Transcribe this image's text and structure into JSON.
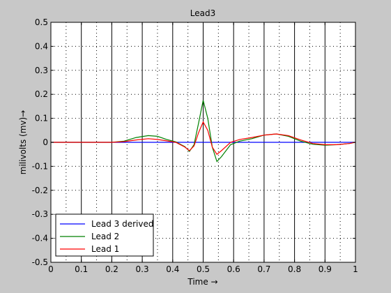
{
  "chart_data": {
    "type": "line",
    "title": "Lead3",
    "xlabel": "Time →",
    "ylabel": "milivolts (mv)→",
    "xlim": [
      0,
      1
    ],
    "ylim": [
      -0.5,
      0.5
    ],
    "x_ticks": [
      0,
      0.1,
      0.2,
      0.3,
      0.4,
      0.5,
      0.6,
      0.7,
      0.8,
      0.9,
      1
    ],
    "x_tick_labels": [
      "0",
      "0.1",
      "0.2",
      "0.3",
      "0.4",
      "0.5",
      "0.6",
      "0.7",
      "0.8",
      "0.9",
      "1"
    ],
    "y_ticks": [
      0.5,
      0.4,
      0.3,
      0.2,
      0.1,
      0,
      -0.1,
      -0.2,
      -0.3,
      -0.4,
      -0.5
    ],
    "y_tick_labels": [
      "0.5",
      "0.4",
      "0.3",
      "0.2",
      "0.1",
      "0",
      "-0.1",
      "-0.2",
      "-0.3",
      "-0.4",
      "-0.5"
    ],
    "grid": "dotted",
    "vertical_markers": [
      0.1,
      0.2,
      0.3,
      0.4,
      0.5,
      0.6,
      0.7,
      0.8,
      0.9
    ],
    "legend_position": "bottom-left",
    "series": [
      {
        "name": "Lead 3 derived",
        "color": "#0000ff",
        "x": [
          0,
          0.1,
          0.2,
          0.3,
          0.4,
          0.5,
          0.6,
          0.7,
          0.8,
          0.9,
          1.0
        ],
        "y": [
          0,
          0,
          0,
          0,
          0,
          0,
          0,
          0,
          0,
          0,
          0
        ]
      },
      {
        "name": "Lead 2",
        "color": "#008000",
        "x": [
          0,
          0.2,
          0.24,
          0.28,
          0.32,
          0.35,
          0.38,
          0.41,
          0.44,
          0.455,
          0.47,
          0.485,
          0.5,
          0.515,
          0.53,
          0.545,
          0.56,
          0.59,
          0.62,
          0.66,
          0.7,
          0.74,
          0.78,
          0.82,
          0.86,
          0.9,
          0.94,
          0.98,
          1.0
        ],
        "y": [
          0,
          0,
          0.005,
          0.02,
          0.028,
          0.025,
          0.012,
          0.002,
          -0.018,
          -0.038,
          -0.01,
          0.08,
          0.175,
          0.1,
          -0.02,
          -0.08,
          -0.06,
          -0.01,
          0.005,
          0.015,
          0.03,
          0.035,
          0.025,
          0.005,
          -0.008,
          -0.012,
          -0.01,
          -0.005,
          0
        ]
      },
      {
        "name": "Lead 1",
        "color": "#ff0000",
        "x": [
          0,
          0.2,
          0.24,
          0.28,
          0.32,
          0.35,
          0.38,
          0.41,
          0.44,
          0.455,
          0.47,
          0.485,
          0.5,
          0.515,
          0.53,
          0.545,
          0.56,
          0.59,
          0.62,
          0.66,
          0.7,
          0.74,
          0.78,
          0.82,
          0.86,
          0.9,
          0.94,
          0.98,
          1.0
        ],
        "y": [
          0,
          0,
          0.003,
          0.01,
          0.015,
          0.012,
          0.006,
          0,
          -0.02,
          -0.035,
          -0.015,
          0.04,
          0.085,
          0.05,
          -0.02,
          -0.05,
          -0.035,
          0,
          0.012,
          0.02,
          0.03,
          0.035,
          0.028,
          0.01,
          -0.005,
          -0.01,
          -0.01,
          -0.005,
          0
        ]
      }
    ]
  }
}
